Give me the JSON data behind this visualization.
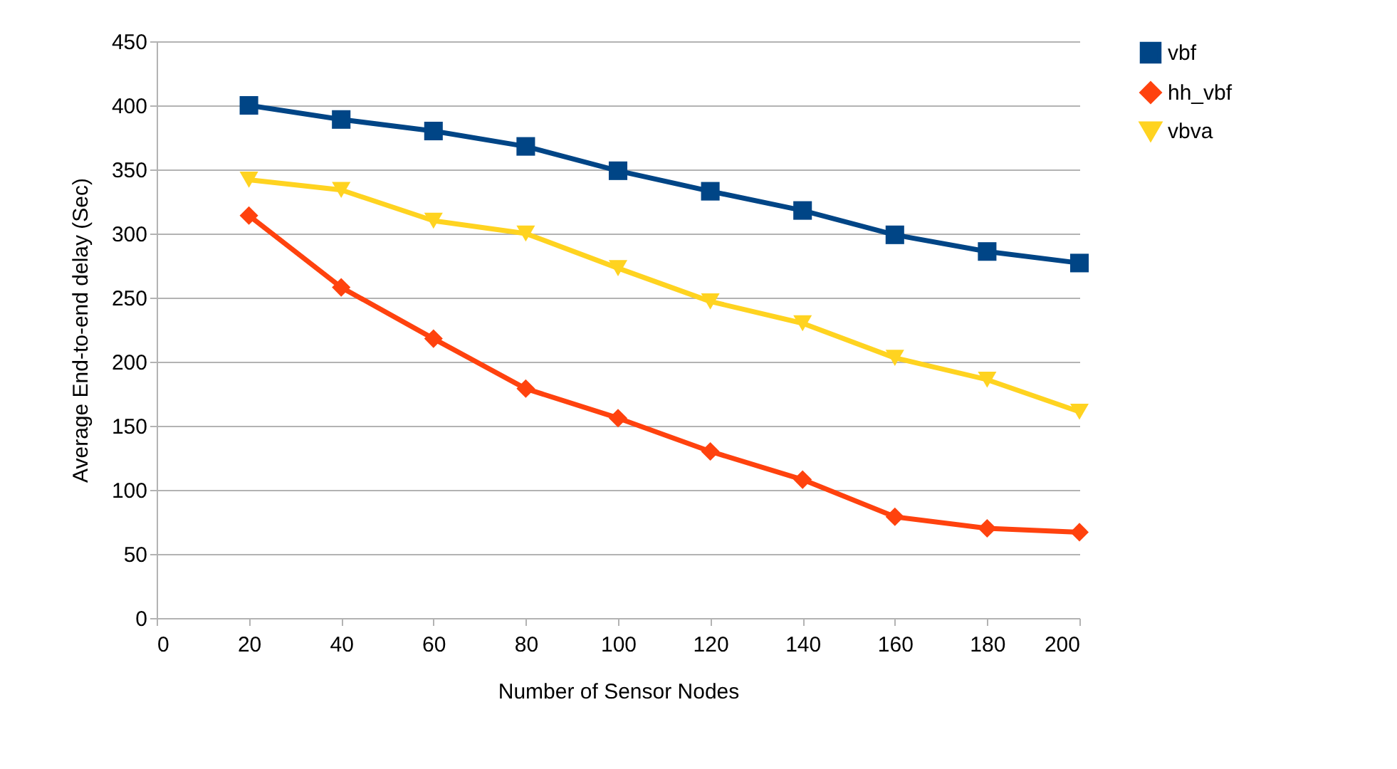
{
  "chart_data": {
    "type": "line",
    "xlabel": "Number of Sensor Nodes",
    "ylabel": "Average End-to-end delay (Sec)",
    "x": [
      20,
      40,
      60,
      80,
      100,
      120,
      140,
      160,
      180,
      200
    ],
    "series": [
      {
        "name": "vbf",
        "color": "#004586",
        "marker": "square",
        "values": [
          400,
          389,
          380,
          368,
          349,
          333,
          318,
          299,
          286,
          277
        ]
      },
      {
        "name": "hh_vbf",
        "color": "#ff420e",
        "marker": "diamond",
        "values": [
          314,
          258,
          218,
          179,
          156,
          130,
          108,
          79,
          70,
          67
        ]
      },
      {
        "name": "vbva",
        "color": "#ffd320",
        "marker": "triangle",
        "values": [
          342,
          334,
          310,
          300,
          273,
          247,
          230,
          203,
          186,
          161
        ]
      }
    ],
    "xlim": [
      0,
      200
    ],
    "xticks": [
      0,
      20,
      40,
      60,
      80,
      100,
      120,
      140,
      160,
      180,
      200
    ],
    "ylim": [
      0,
      450
    ],
    "yticks": [
      0,
      50,
      100,
      150,
      200,
      250,
      300,
      350,
      400,
      450
    ],
    "grid": "y",
    "legend": "right",
    "line_style": "solid"
  }
}
